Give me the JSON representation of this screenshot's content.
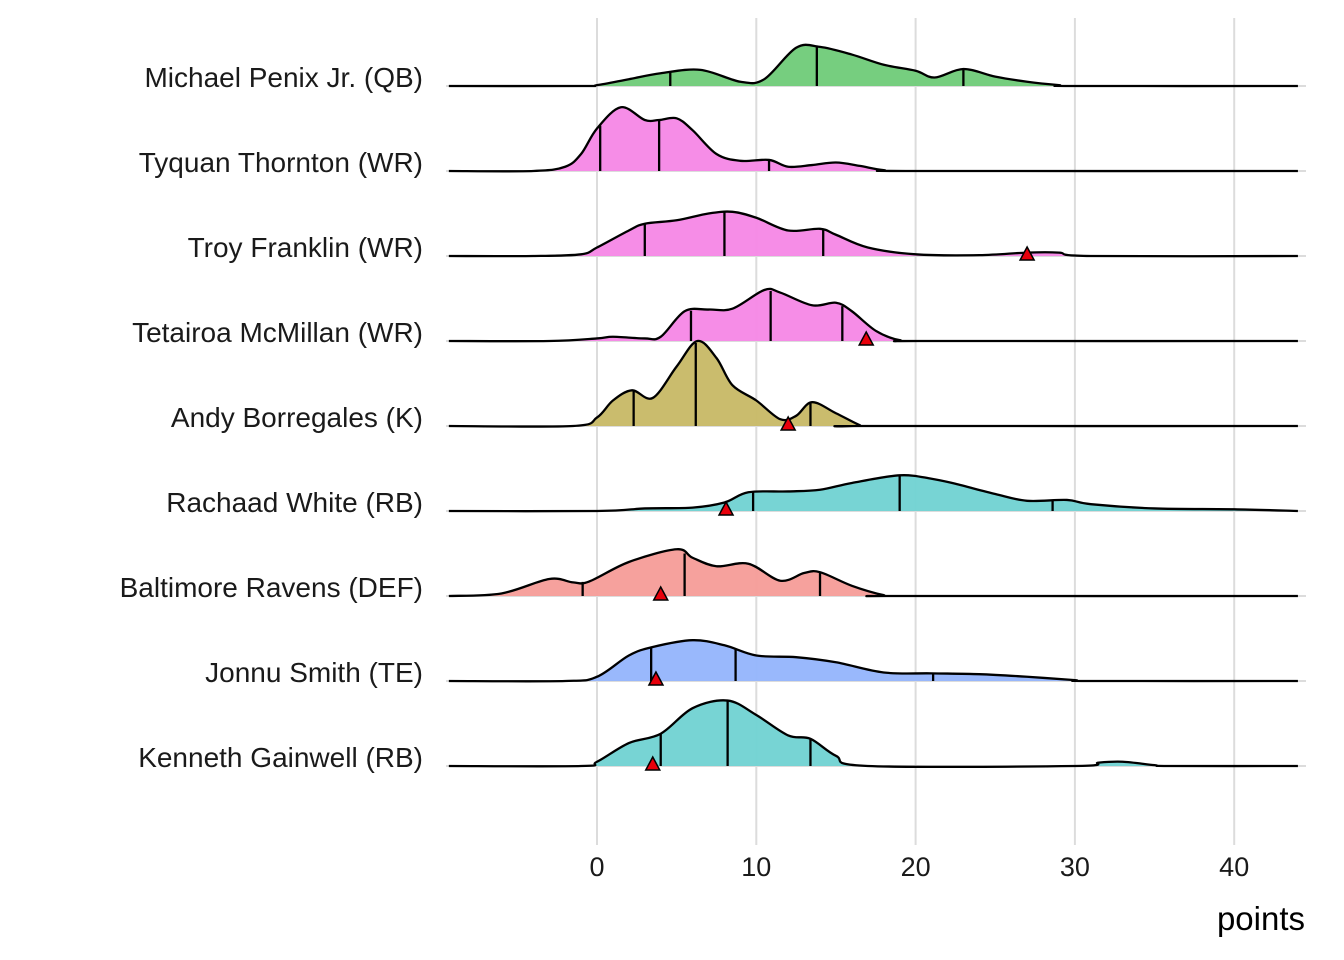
{
  "chart_data": {
    "type": "ridgeline",
    "title": "",
    "xlabel": "points",
    "ylabel": "",
    "xlim": [
      -9.3,
      44
    ],
    "x_ticks": [
      0,
      10,
      20,
      30,
      40
    ],
    "x_tick_labels": [
      "0",
      "10",
      "20",
      "30",
      "40"
    ],
    "grid": true,
    "marker_color": "#E8000B",
    "series": [
      {
        "name": "Michael Penix Jr. (QB)",
        "color": "#6FCB78",
        "quantiles": [
          4.6,
          13.8,
          23.0
        ],
        "marker": null,
        "density": [
          [
            -9.3,
            0
          ],
          [
            -1,
            0
          ],
          [
            0,
            0.01
          ],
          [
            2,
            0.08
          ],
          [
            4,
            0.15
          ],
          [
            6.5,
            0.19
          ],
          [
            9,
            0.05
          ],
          [
            10.5,
            0.08
          ],
          [
            12.5,
            0.45
          ],
          [
            14,
            0.46
          ],
          [
            16,
            0.37
          ],
          [
            18,
            0.25
          ],
          [
            20,
            0.18
          ],
          [
            21.2,
            0.1
          ],
          [
            23,
            0.2
          ],
          [
            25,
            0.11
          ],
          [
            27,
            0.05
          ],
          [
            29,
            0.01
          ],
          [
            30,
            0
          ],
          [
            44,
            0
          ]
        ]
      },
      {
        "name": "Tyquan Thornton (WR)",
        "color": "#F587E6",
        "quantiles": [
          0.2,
          3.9,
          10.8
        ],
        "marker": null,
        "density": [
          [
            -9.3,
            0
          ],
          [
            -4,
            0
          ],
          [
            -2,
            0.05
          ],
          [
            -1,
            0.2
          ],
          [
            0,
            0.5
          ],
          [
            1.5,
            0.75
          ],
          [
            3,
            0.6
          ],
          [
            3.9,
            0.6
          ],
          [
            5,
            0.62
          ],
          [
            6,
            0.48
          ],
          [
            7.5,
            0.2
          ],
          [
            9,
            0.12
          ],
          [
            10.8,
            0.13
          ],
          [
            12,
            0.05
          ],
          [
            13.5,
            0.07
          ],
          [
            15,
            0.1
          ],
          [
            16.5,
            0.06
          ],
          [
            18,
            0.01
          ],
          [
            20,
            0
          ],
          [
            44,
            0
          ]
        ]
      },
      {
        "name": "Troy Franklin (WR)",
        "color": "#F587E6",
        "quantiles": [
          3.0,
          8.0,
          14.2
        ],
        "marker": 27.0,
        "density": [
          [
            -9.3,
            0
          ],
          [
            -4,
            0
          ],
          [
            -1,
            0.02
          ],
          [
            0,
            0.1
          ],
          [
            2,
            0.3
          ],
          [
            3,
            0.38
          ],
          [
            5,
            0.42
          ],
          [
            7,
            0.5
          ],
          [
            8.5,
            0.52
          ],
          [
            10,
            0.45
          ],
          [
            12,
            0.3
          ],
          [
            14,
            0.32
          ],
          [
            15,
            0.25
          ],
          [
            17,
            0.1
          ],
          [
            20,
            0.02
          ],
          [
            24,
            0.01
          ],
          [
            27,
            0.04
          ],
          [
            29,
            0.04
          ],
          [
            31,
            0
          ],
          [
            44,
            0
          ]
        ]
      },
      {
        "name": "Tetairoa McMillan (WR)",
        "color": "#F587E6",
        "quantiles": [
          5.9,
          10.9,
          15.4
        ],
        "marker": 16.9,
        "density": [
          [
            -9.3,
            0
          ],
          [
            -3,
            0
          ],
          [
            0,
            0.03
          ],
          [
            1,
            0.05
          ],
          [
            3,
            0.03
          ],
          [
            4,
            0.05
          ],
          [
            5.5,
            0.35
          ],
          [
            7,
            0.37
          ],
          [
            8.5,
            0.38
          ],
          [
            10.5,
            0.6
          ],
          [
            11.5,
            0.57
          ],
          [
            13.5,
            0.42
          ],
          [
            15,
            0.45
          ],
          [
            16,
            0.35
          ],
          [
            17.5,
            0.12
          ],
          [
            19,
            0.01
          ],
          [
            21,
            0
          ],
          [
            44,
            0
          ]
        ]
      },
      {
        "name": "Andy Borregales (K)",
        "color": "#C7B865",
        "quantiles": [
          2.3,
          6.2,
          13.4
        ],
        "marker": 12.0,
        "density": [
          [
            -9.3,
            0
          ],
          [
            -1.5,
            0
          ],
          [
            0,
            0.1
          ],
          [
            1,
            0.3
          ],
          [
            2.2,
            0.42
          ],
          [
            3.5,
            0.33
          ],
          [
            5,
            0.7
          ],
          [
            6.3,
            1.0
          ],
          [
            7.5,
            0.8
          ],
          [
            8.5,
            0.48
          ],
          [
            10,
            0.3
          ],
          [
            11.5,
            0.08
          ],
          [
            12.5,
            0.12
          ],
          [
            13.5,
            0.28
          ],
          [
            15,
            0.15
          ],
          [
            16.5,
            0.01
          ],
          [
            17,
            0
          ],
          [
            44,
            0
          ]
        ]
      },
      {
        "name": "Rachaad White (RB)",
        "color": "#70D2D2",
        "quantiles": [
          9.8,
          19.0,
          28.6
        ],
        "marker": 8.1,
        "density": [
          [
            -9.3,
            0
          ],
          [
            0,
            0
          ],
          [
            3,
            0.03
          ],
          [
            6,
            0.04
          ],
          [
            8,
            0.1
          ],
          [
            9.5,
            0.22
          ],
          [
            12,
            0.23
          ],
          [
            14,
            0.25
          ],
          [
            16,
            0.33
          ],
          [
            19,
            0.42
          ],
          [
            21,
            0.38
          ],
          [
            22.5,
            0.32
          ],
          [
            25,
            0.2
          ],
          [
            27,
            0.12
          ],
          [
            29.5,
            0.13
          ],
          [
            31,
            0.08
          ],
          [
            35,
            0.03
          ],
          [
            40,
            0.02
          ],
          [
            44,
            0
          ]
        ]
      },
      {
        "name": "Baltimore Ravens (DEF)",
        "color": "#F69C98",
        "quantiles": [
          -0.9,
          5.5,
          14.0
        ],
        "marker": 4.0,
        "density": [
          [
            -9.3,
            0
          ],
          [
            -6,
            0.03
          ],
          [
            -3,
            0.2
          ],
          [
            -1.5,
            0.16
          ],
          [
            -0.5,
            0.17
          ],
          [
            2,
            0.4
          ],
          [
            5,
            0.55
          ],
          [
            6,
            0.45
          ],
          [
            7.5,
            0.35
          ],
          [
            9.5,
            0.38
          ],
          [
            11.5,
            0.18
          ],
          [
            13,
            0.27
          ],
          [
            14,
            0.28
          ],
          [
            16,
            0.12
          ],
          [
            18,
            0.01
          ],
          [
            19,
            0
          ],
          [
            44,
            0
          ]
        ]
      },
      {
        "name": "Jonnu Smith (TE)",
        "color": "#94B4FC",
        "quantiles": [
          3.4,
          8.7,
          21.1
        ],
        "marker": 3.7,
        "density": [
          [
            -9.3,
            0
          ],
          [
            -2,
            0
          ],
          [
            0,
            0.05
          ],
          [
            2,
            0.3
          ],
          [
            3.5,
            0.4
          ],
          [
            6,
            0.48
          ],
          [
            8,
            0.42
          ],
          [
            10,
            0.3
          ],
          [
            12.5,
            0.28
          ],
          [
            15,
            0.22
          ],
          [
            18,
            0.1
          ],
          [
            21,
            0.09
          ],
          [
            24,
            0.08
          ],
          [
            27,
            0.05
          ],
          [
            30,
            0.01
          ],
          [
            31,
            0
          ],
          [
            44,
            0
          ]
        ]
      },
      {
        "name": "Kenneth Gainwell (RB)",
        "color": "#70D2D2",
        "quantiles": [
          4.0,
          8.2,
          13.4
        ],
        "marker": 3.5,
        "density": [
          [
            -9.3,
            0
          ],
          [
            -1,
            0
          ],
          [
            0,
            0.05
          ],
          [
            2,
            0.27
          ],
          [
            4,
            0.38
          ],
          [
            6,
            0.68
          ],
          [
            8.2,
            0.77
          ],
          [
            10,
            0.6
          ],
          [
            12,
            0.36
          ],
          [
            13.4,
            0.32
          ],
          [
            15,
            0.12
          ],
          [
            17,
            0
          ],
          [
            30,
            0
          ],
          [
            31.5,
            0.04
          ],
          [
            33,
            0.05
          ],
          [
            35,
            0.01
          ],
          [
            36,
            0
          ],
          [
            44,
            0
          ]
        ]
      }
    ]
  }
}
